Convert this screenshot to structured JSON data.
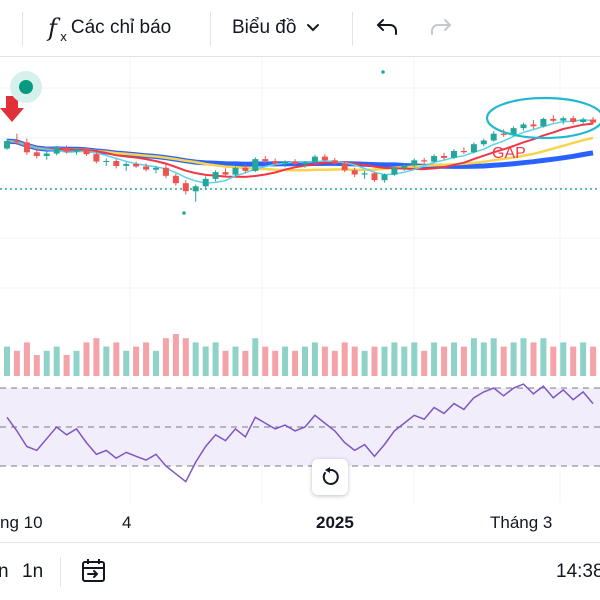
{
  "toolbar": {
    "indicators_label": "Các chỉ báo",
    "chart_type_label": "Biểu đồ"
  },
  "annotation": {
    "gap_label": "GAP"
  },
  "x_axis": {
    "labels": [
      "ng 10",
      "4",
      "2025",
      "Tháng 3"
    ]
  },
  "bottom_bar": {
    "interval_1": "n",
    "interval_2": "1n",
    "time": "14:38"
  },
  "colors": {
    "up": "#26a69a",
    "down": "#ef5350",
    "volume_up": "#8fd3c8",
    "volume_down": "#f4a3a8",
    "ma_blue": "#2962ff",
    "ma_yellow": "#f7d44c",
    "ma_red": "#f23645",
    "ma_cyan": "#5bd4e8",
    "rsi_line": "#7e57c2",
    "rsi_band": "#f1edfb",
    "gap_cyan": "#22b8cf"
  },
  "chart_data": {
    "type": "candlestick",
    "ohlc": [
      [
        100,
        101.5,
        99.8,
        101.2
      ],
      [
        101.2,
        102.4,
        100.6,
        101.0
      ],
      [
        101.0,
        101.6,
        99.0,
        99.4
      ],
      [
        99.4,
        100.0,
        98.4,
        98.8
      ],
      [
        98.8,
        99.6,
        98.2,
        99.2
      ],
      [
        99.2,
        100.4,
        98.9,
        100.1
      ],
      [
        100.1,
        100.5,
        99.2,
        99.5
      ],
      [
        99.5,
        100.2,
        99.0,
        99.9
      ],
      [
        99.9,
        100.1,
        98.8,
        99.1
      ],
      [
        99.1,
        99.5,
        97.6,
        97.9
      ],
      [
        97.9,
        98.4,
        97.2,
        98.0
      ],
      [
        98.0,
        98.3,
        96.8,
        97.2
      ],
      [
        97.2,
        97.8,
        96.4,
        97.5
      ],
      [
        97.5,
        97.9,
        96.9,
        97.1
      ],
      [
        97.1,
        97.6,
        96.3,
        96.6
      ],
      [
        96.6,
        97.2,
        96.0,
        96.9
      ],
      [
        96.9,
        97.4,
        95.2,
        95.6
      ],
      [
        95.6,
        96.0,
        94.0,
        94.4
      ],
      [
        94.4,
        94.9,
        92.6,
        93.1
      ],
      [
        93.1,
        94.2,
        91.4,
        93.9
      ],
      [
        93.9,
        95.5,
        93.5,
        95.1
      ],
      [
        95.1,
        96.5,
        94.7,
        96.2
      ],
      [
        96.2,
        96.8,
        95.4,
        95.8
      ],
      [
        95.8,
        97.1,
        95.5,
        96.9
      ],
      [
        96.9,
        97.4,
        96.1,
        96.4
      ],
      [
        96.4,
        98.6,
        96.2,
        98.3
      ],
      [
        98.3,
        98.8,
        97.6,
        98.0
      ],
      [
        98.0,
        98.4,
        97.2,
        97.6
      ],
      [
        97.6,
        98.1,
        97.0,
        97.9
      ],
      [
        97.9,
        98.3,
        97.3,
        97.5
      ],
      [
        97.5,
        98.0,
        96.9,
        97.8
      ],
      [
        97.8,
        99.0,
        97.6,
        98.7
      ],
      [
        98.7,
        99.1,
        97.9,
        98.1
      ],
      [
        98.1,
        98.5,
        97.4,
        97.6
      ],
      [
        97.6,
        97.9,
        96.2,
        96.5
      ],
      [
        96.5,
        96.9,
        95.4,
        95.8
      ],
      [
        95.8,
        96.4,
        95.1,
        96.0
      ],
      [
        96.0,
        96.2,
        94.6,
        94.9
      ],
      [
        94.9,
        96.0,
        94.5,
        95.8
      ],
      [
        95.8,
        97.2,
        95.6,
        96.9
      ],
      [
        96.9,
        97.6,
        96.4,
        97.3
      ],
      [
        97.3,
        98.4,
        97.0,
        98.1
      ],
      [
        98.1,
        98.5,
        97.6,
        97.9
      ],
      [
        97.9,
        99.1,
        97.7,
        98.8
      ],
      [
        98.8,
        99.3,
        98.2,
        98.5
      ],
      [
        98.5,
        99.9,
        98.3,
        99.6
      ],
      [
        99.6,
        100.2,
        99.1,
        99.4
      ],
      [
        99.4,
        101.0,
        99.2,
        100.7
      ],
      [
        100.7,
        101.6,
        100.4,
        101.3
      ],
      [
        101.3,
        102.8,
        101.1,
        102.4
      ],
      [
        102.4,
        103.1,
        101.9,
        102.2
      ],
      [
        102.2,
        103.6,
        102.0,
        103.3
      ],
      [
        103.3,
        104.2,
        102.9,
        103.9
      ],
      [
        103.9,
        104.6,
        103.2,
        103.6
      ],
      [
        103.6,
        105.0,
        103.4,
        104.8
      ],
      [
        104.8,
        105.4,
        104.2,
        104.5
      ],
      [
        104.5,
        105.2,
        103.9,
        104.9
      ],
      [
        104.9,
        105.3,
        104.0,
        104.3
      ],
      [
        104.3,
        105.0,
        103.8,
        104.7
      ],
      [
        104.7,
        105.1,
        103.9,
        104.2
      ]
    ],
    "volume": [
      7,
      6,
      8,
      5,
      6,
      7,
      5,
      6,
      8,
      9,
      7,
      8,
      6,
      7,
      8,
      6,
      9,
      10,
      9,
      8,
      7,
      8,
      6,
      7,
      6,
      9,
      7,
      6,
      7,
      6,
      7,
      8,
      7,
      6,
      8,
      7,
      6,
      7,
      7,
      8,
      7,
      8,
      6,
      8,
      7,
      8,
      7,
      9,
      8,
      9,
      7,
      8,
      9,
      8,
      9,
      7,
      8,
      7,
      8,
      7
    ],
    "rsi": [
      55,
      48,
      40,
      38,
      44,
      50,
      46,
      49,
      42,
      36,
      38,
      34,
      37,
      35,
      33,
      36,
      30,
      26,
      22,
      32,
      40,
      46,
      43,
      49,
      45,
      55,
      52,
      49,
      51,
      48,
      50,
      56,
      52,
      48,
      42,
      38,
      41,
      35,
      41,
      48,
      52,
      56,
      54,
      60,
      57,
      62,
      59,
      65,
      68,
      70,
      66,
      70,
      72,
      67,
      71,
      65,
      69,
      64,
      68,
      62
    ],
    "rsi_levels": [
      70,
      50,
      30
    ],
    "annotations": [
      "GAP"
    ]
  }
}
